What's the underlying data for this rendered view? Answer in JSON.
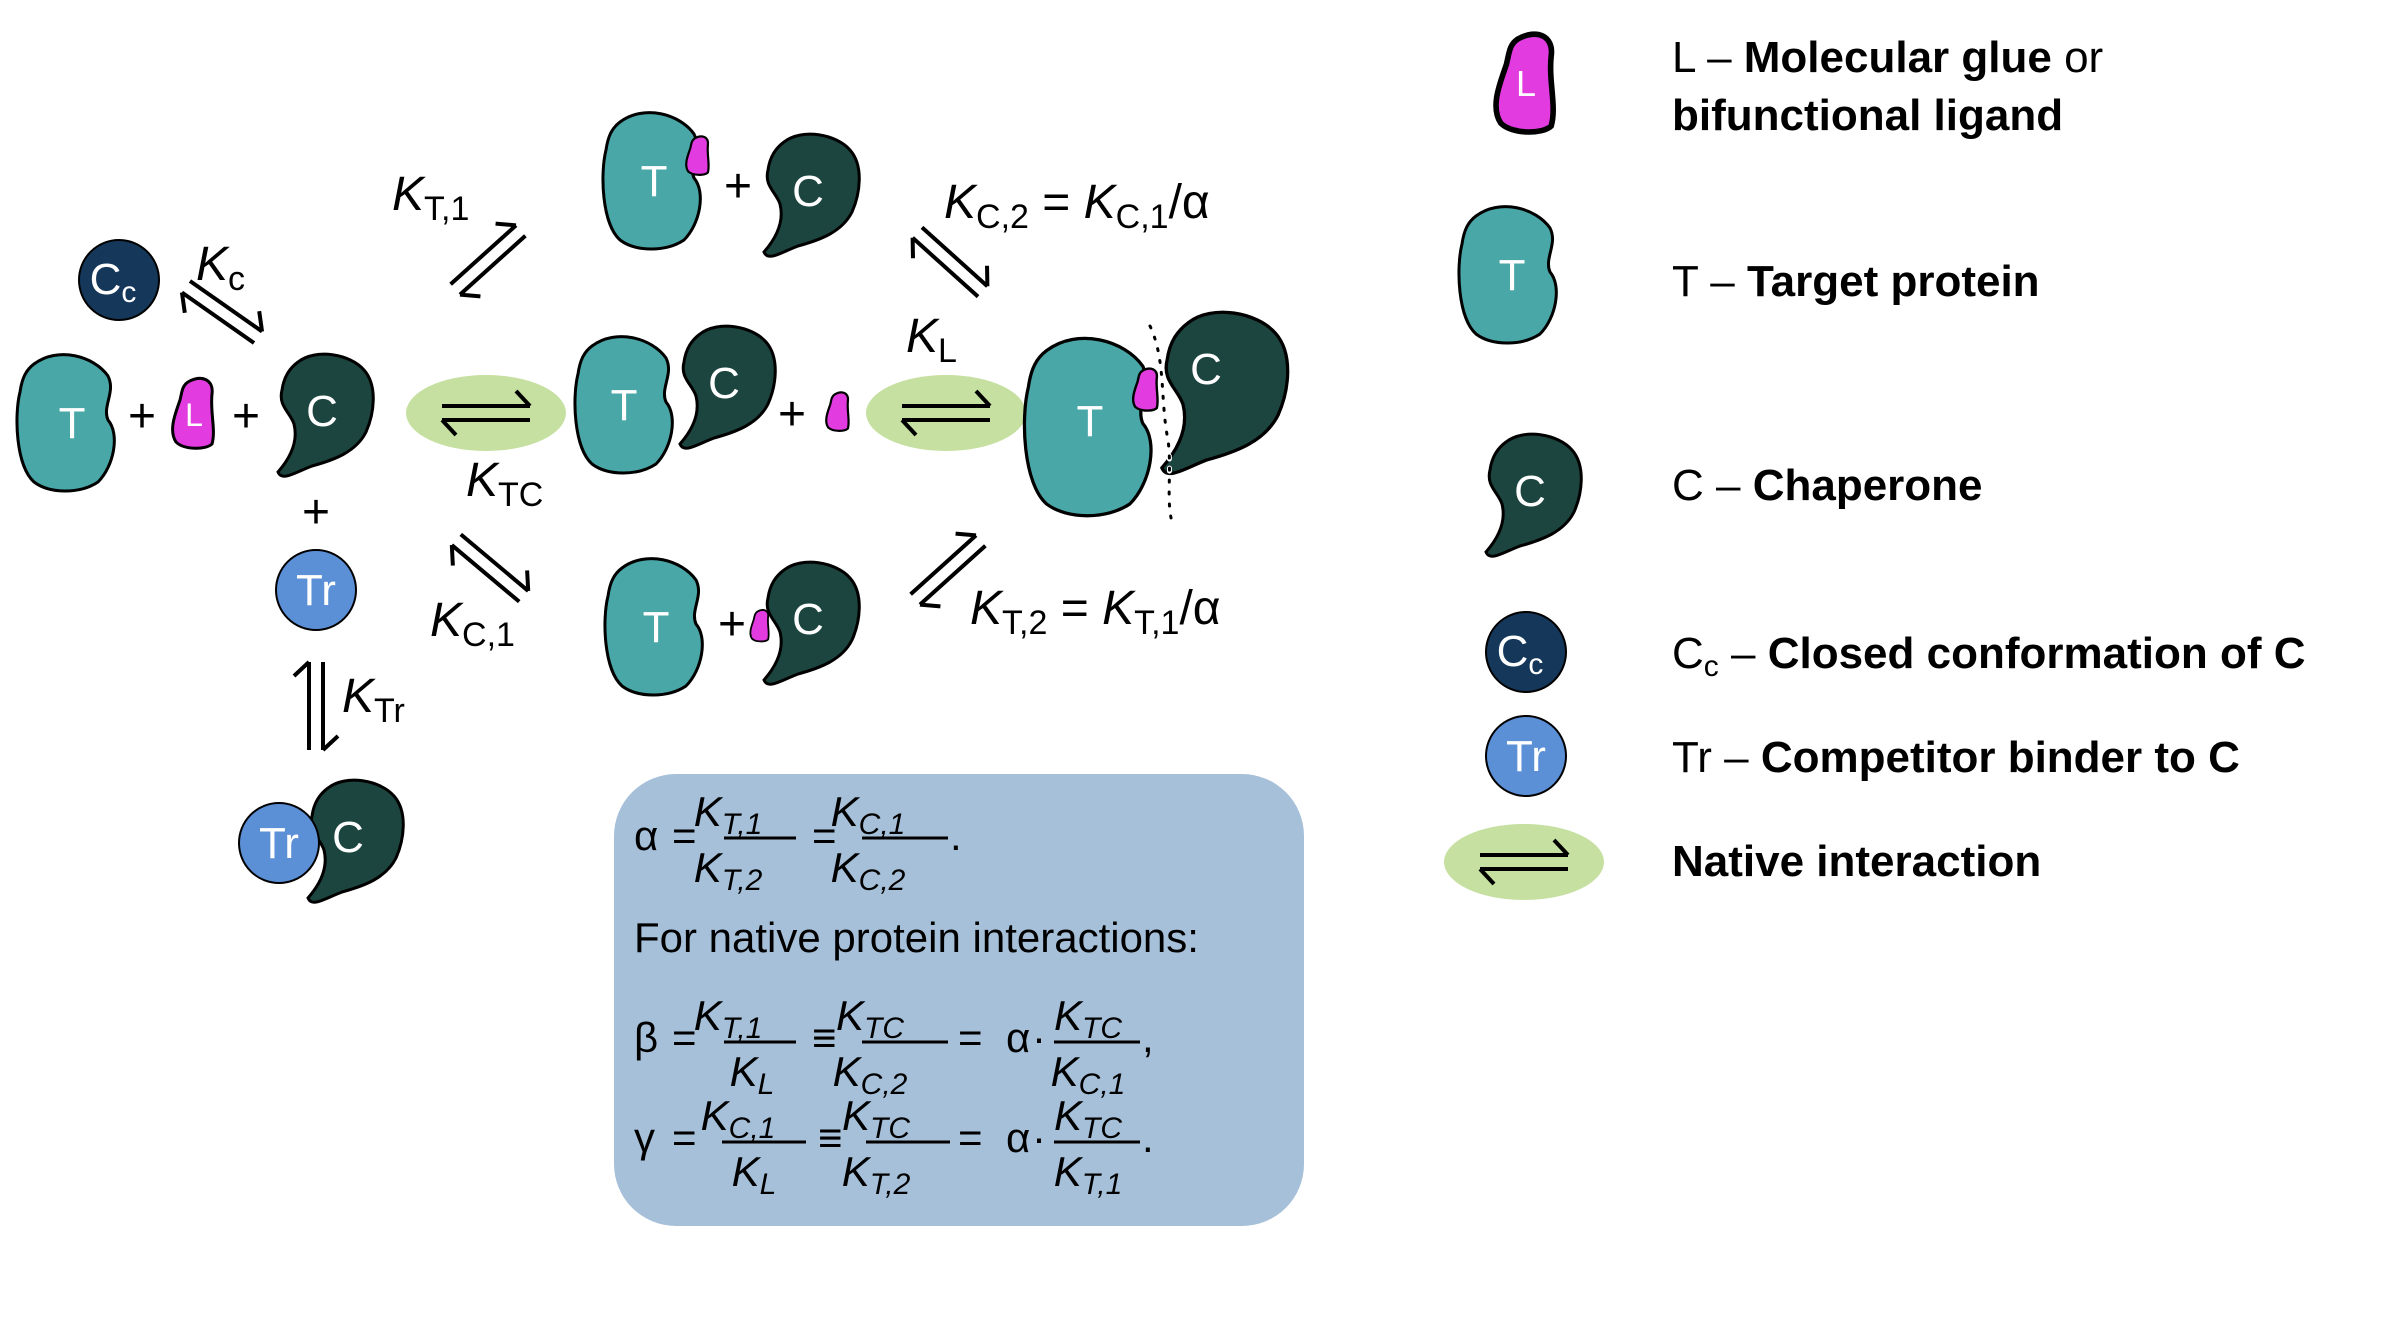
{
  "colors": {
    "target": "#4aa7a8",
    "chaperone": "#1c4540",
    "ligand": "#e23ce0",
    "closed": "#14375a",
    "competitor": "#5b8fd6",
    "native": "#c5e0a0",
    "box": "#a6c0d9"
  },
  "species": {
    "T": "T",
    "C": "C",
    "L": "L",
    "Cc_main": "C",
    "Cc_sub": "c",
    "Tr": "Tr"
  },
  "constants": {
    "K": "K",
    "Kc_sub": "c",
    "KT1_sub": "T,1",
    "KC2_sub": "C,2",
    "KC2_eq": " = ",
    "KC1_sub": "C,1",
    "KC2_tail": "/α",
    "KL_sub": "L",
    "KTC_sub": "TC",
    "KT2_sub": "T,2",
    "KTr_sub": "Tr"
  },
  "symbols": {
    "plus": "+"
  },
  "legend": [
    {
      "icon": "ligand-icon",
      "prefix": "L – ",
      "bold": "Molecular glue",
      "rest": " or",
      "line2": "bifunctional ligand"
    },
    {
      "icon": "target-icon",
      "prefix": "T – ",
      "bold": "Target protein"
    },
    {
      "icon": "chaperone-icon",
      "prefix": "C – ",
      "bold": "Chaperone"
    },
    {
      "icon": "closed-icon",
      "prefix_main": "C",
      "prefix_sub": "c",
      "prefix_tail": " – ",
      "bold": "Closed conformation of C"
    },
    {
      "icon": "competitor-icon",
      "prefix": "Tr – ",
      "bold": "Competitor binder to C"
    },
    {
      "icon": "native-icon",
      "bold": "Native interaction"
    }
  ],
  "equations": {
    "alpha": "α",
    "beta": "β",
    "gamma": "γ",
    "eq": "=",
    "equiv": "≡",
    "dot": "·",
    "comma": ",",
    "period": ".",
    "native_text": "For native protein interactions:"
  }
}
